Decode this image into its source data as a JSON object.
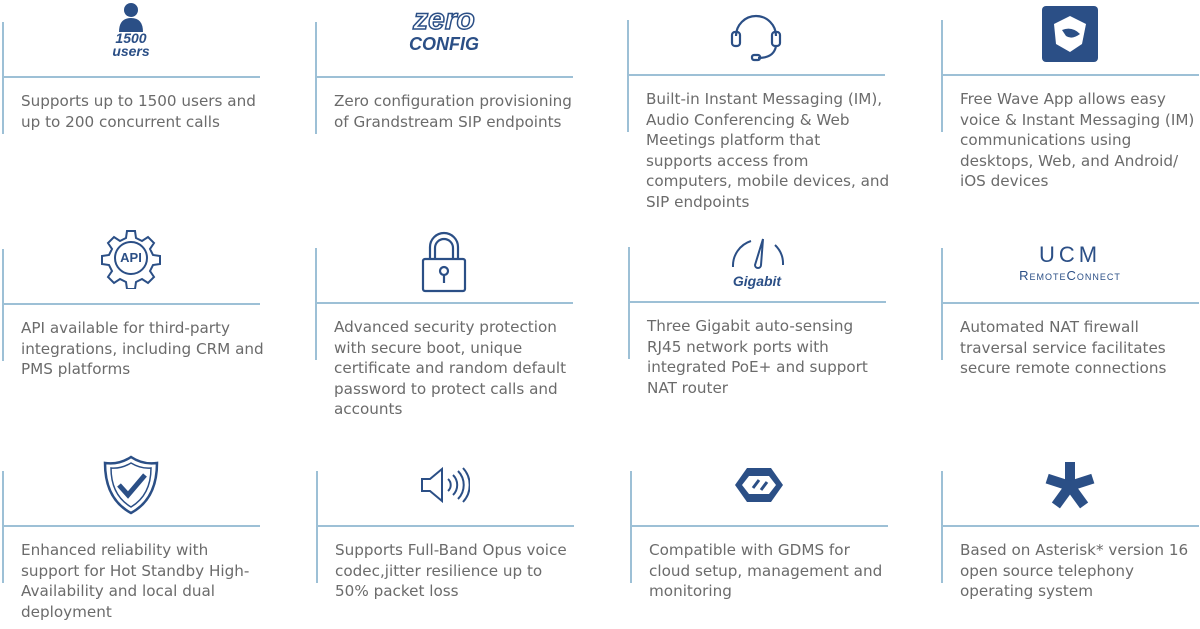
{
  "colors": {
    "icon": "#2b4f86",
    "divider": "#9dc0d6",
    "text": "#6b6b6b"
  },
  "features": [
    {
      "icon": "user-icon",
      "icon_text": [
        "1500",
        "users"
      ],
      "text": "Supports up to 1500 users and up to 200 concurrent calls"
    },
    {
      "icon": "zero-config-logo",
      "icon_text": [
        "zero",
        "CONFIG"
      ],
      "text": "Zero configuration provisioning of Grandstream SIP endpoints"
    },
    {
      "icon": "headset-icon",
      "text": "Built-in Instant Messaging (IM), Audio Conferencing & Web Meetings platform that supports access from computers, mobile devices, and SIP endpoints"
    },
    {
      "icon": "wave-app-icon",
      "text": "Free Wave App allows easy voice & Instant Messaging (IM) communications using desktops, Web, and Android/ iOS devices"
    },
    {
      "icon": "api-gear-icon",
      "icon_text": [
        "API"
      ],
      "text": "API available for third-party integrations, including CRM and PMS platforms"
    },
    {
      "icon": "padlock-icon",
      "text": "Advanced security protection with secure boot, unique certificate and random default password to protect calls and accounts"
    },
    {
      "icon": "speedometer-icon",
      "icon_text": [
        "Gigabit"
      ],
      "text": "Three Gigabit auto-sensing RJ45 network ports with integrated PoE+ and support NAT router"
    },
    {
      "icon": "ucm-remoteconnect-logo",
      "icon_text": [
        "UCM",
        "RemoteConnect"
      ],
      "text": "Automated NAT firewall traversal service facilitates secure remote connections"
    },
    {
      "icon": "shield-check-icon",
      "text": "Enhanced reliability with support for Hot Standby High-Availability and local dual deployment"
    },
    {
      "icon": "speaker-icon",
      "text": "Supports Full-Band Opus voice codec,jitter resilience up to 50% packet loss"
    },
    {
      "icon": "gdms-icon",
      "text": "Compatible with GDMS for cloud setup, management and monitoring"
    },
    {
      "icon": "asterisk-icon",
      "text": "Based on Asterisk* version 16 open source telephony operating system"
    }
  ]
}
